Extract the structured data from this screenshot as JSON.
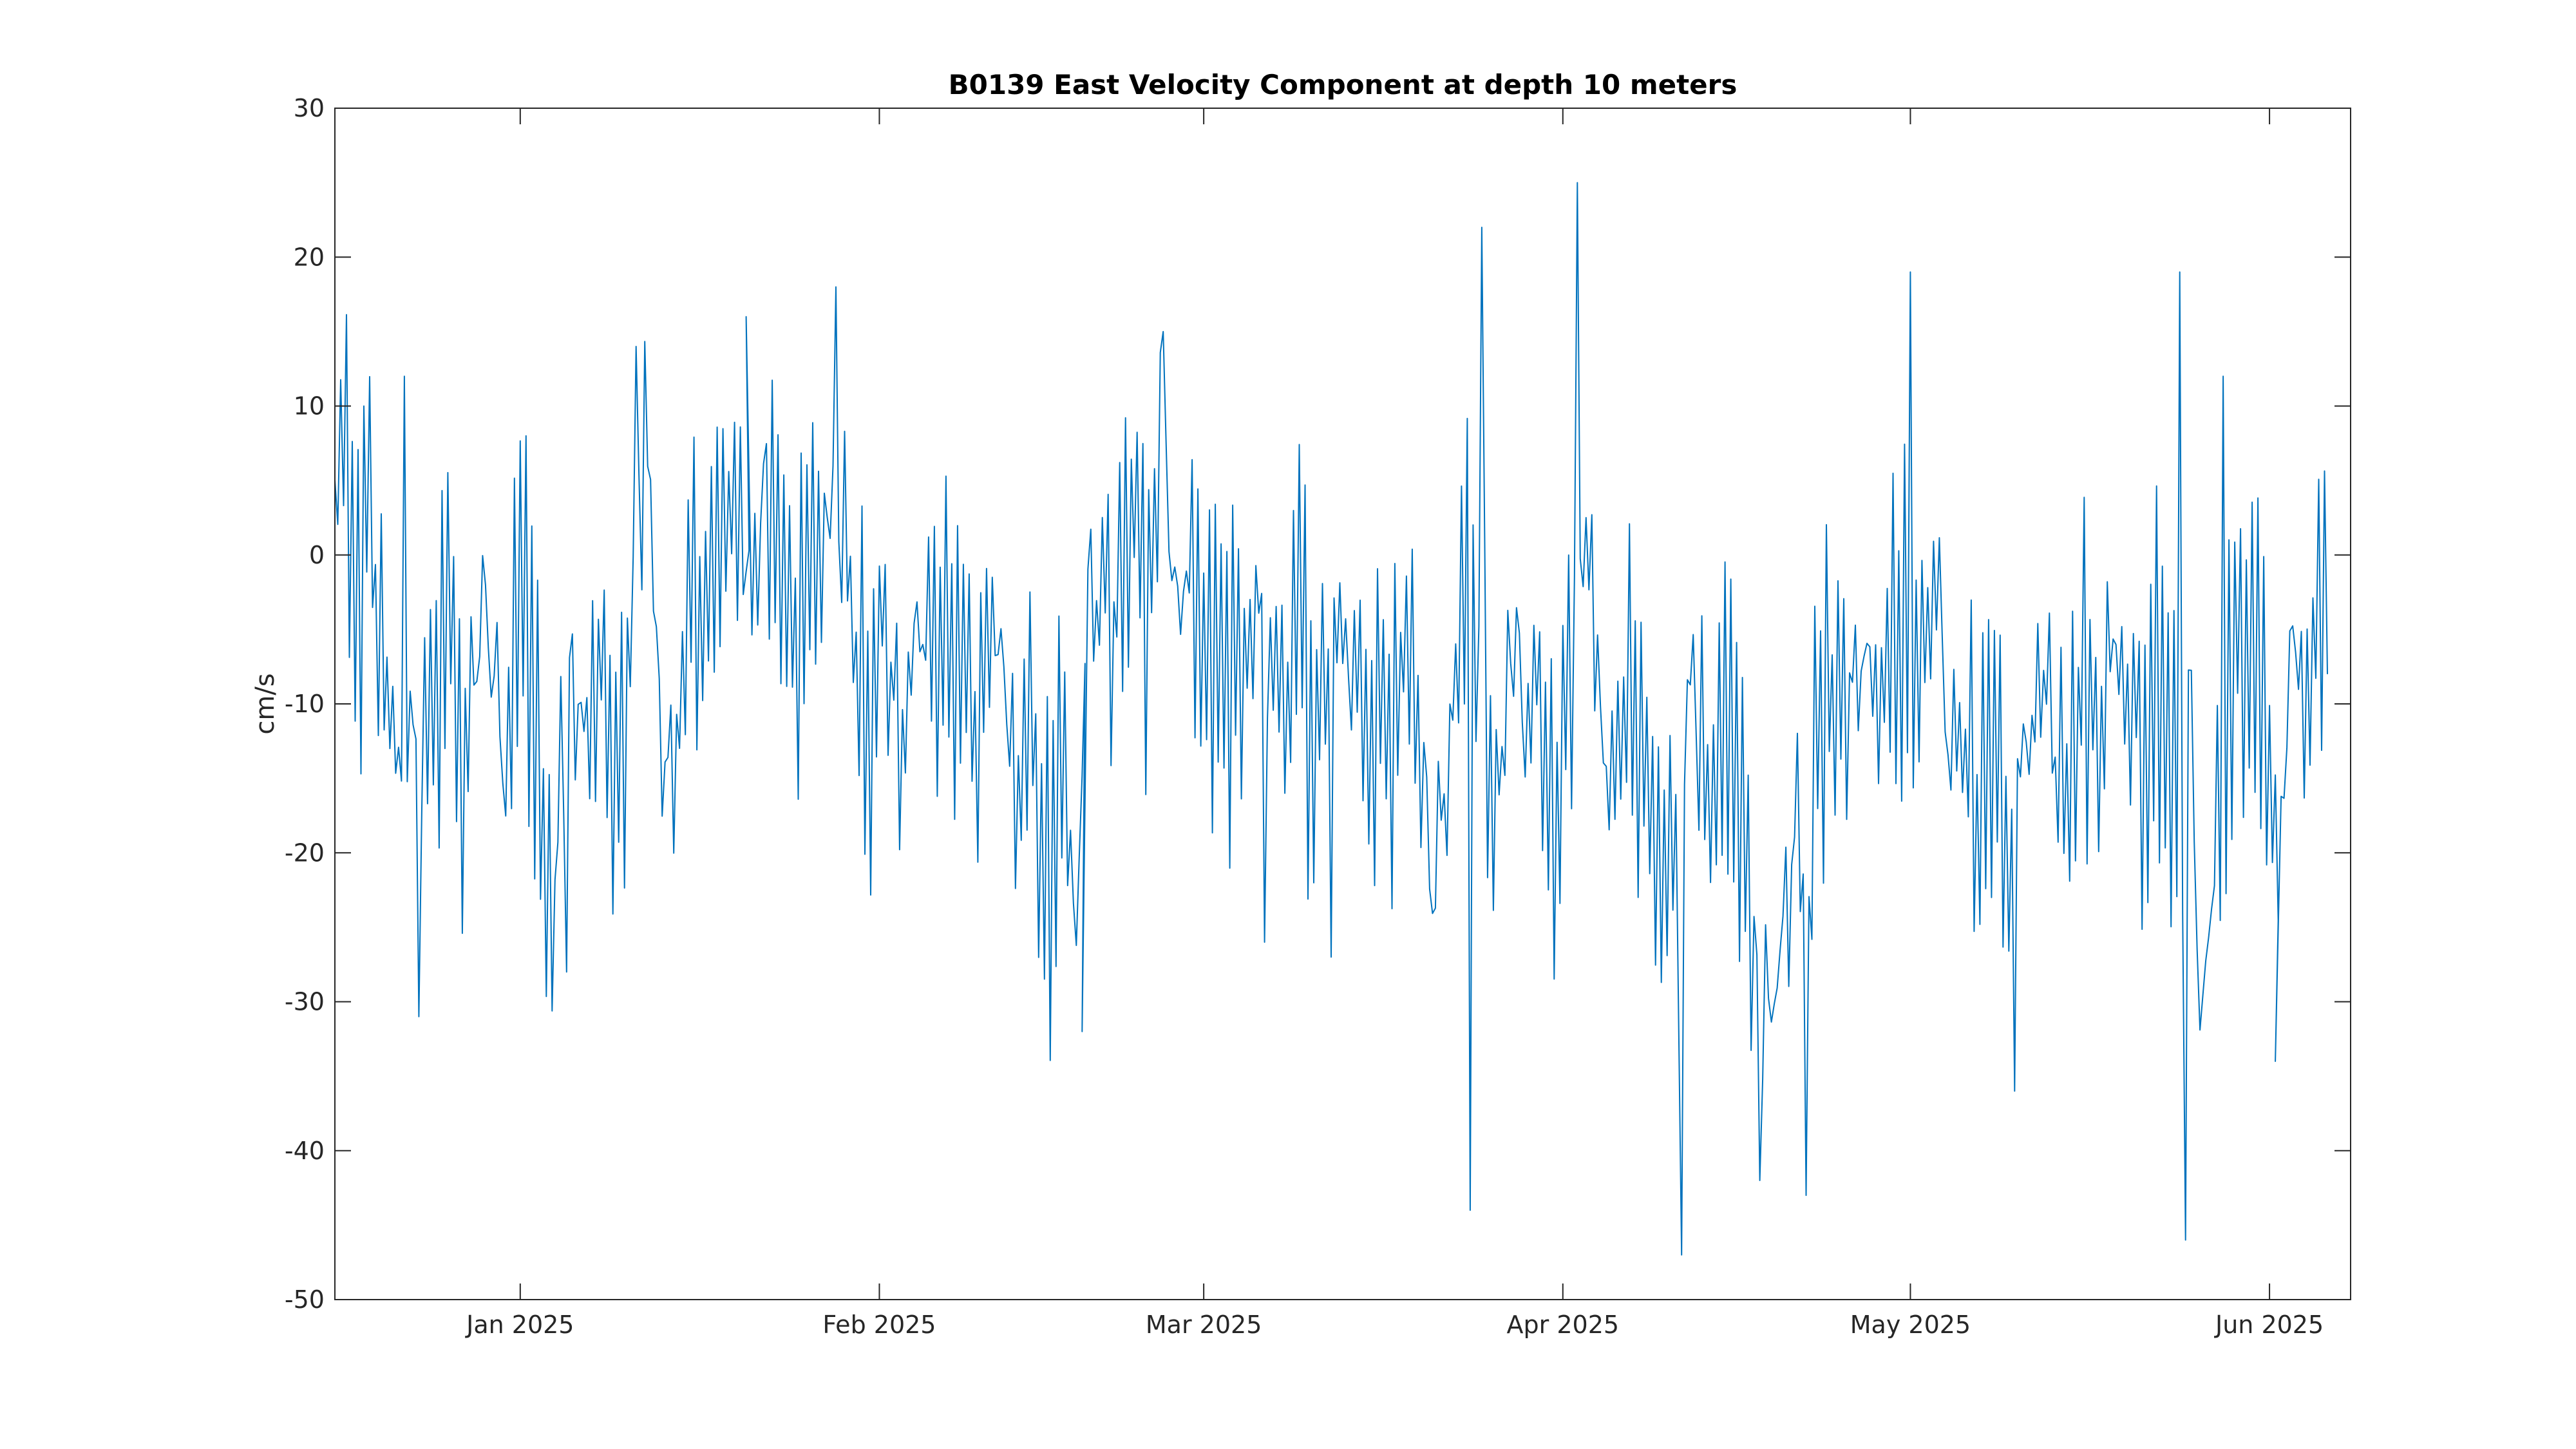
{
  "chart_data": {
    "type": "line",
    "title": "B0139 East Velocity Component at depth 10 meters",
    "xlabel": "",
    "ylabel": "cm/s",
    "xlim": [
      "2024-12-16",
      "2025-06-06"
    ],
    "ylim": [
      -50,
      30
    ],
    "xticks": [
      {
        "date": "2025-01-01",
        "label": "Jan 2025"
      },
      {
        "date": "2025-02-01",
        "label": "Feb 2025"
      },
      {
        "date": "2025-03-01",
        "label": "Mar 2025"
      },
      {
        "date": "2025-04-01",
        "label": "Apr 2025"
      },
      {
        "date": "2025-05-01",
        "label": "May 2025"
      },
      {
        "date": "2025-06-01",
        "label": "Jun 2025"
      }
    ],
    "yticks": [
      30,
      20,
      10,
      0,
      -10,
      -20,
      -30,
      -40,
      -50
    ],
    "grid": false,
    "series_color": "#0072BD",
    "series": [
      {
        "sampling_hours": 6,
        "x": [
          {
            "date": "2024-12-16",
            "y": 2
          },
          {
            "date": "2024-12-17",
            "y": 5
          },
          {
            "date": "2024-12-18",
            "y": -2
          },
          {
            "date": "2024-12-19",
            "y": 3
          },
          {
            "date": "2024-12-20",
            "y": -8
          },
          {
            "date": "2024-12-21",
            "y": -12
          },
          {
            "date": "2024-12-22",
            "y": -18
          },
          {
            "date": "2024-12-23",
            "y": -6
          },
          {
            "date": "2024-12-24",
            "y": -14
          },
          {
            "date": "2024-12-25",
            "y": -9
          },
          {
            "date": "2024-12-26",
            "y": -5
          },
          {
            "date": "2024-12-27",
            "y": -16
          },
          {
            "date": "2024-12-28",
            "y": -10
          },
          {
            "date": "2024-12-29",
            "y": -4
          },
          {
            "date": "2024-12-30",
            "y": -12
          },
          {
            "date": "2024-12-31",
            "y": -15
          },
          {
            "date": "2025-01-01",
            "y": 3
          },
          {
            "date": "2025-01-02",
            "y": -11
          },
          {
            "date": "2025-01-03",
            "y": -18
          },
          {
            "date": "2025-01-04",
            "y": -22
          },
          {
            "date": "2025-01-05",
            "y": -8
          },
          {
            "date": "2025-01-06",
            "y": -14
          },
          {
            "date": "2025-01-07",
            "y": -12
          },
          {
            "date": "2025-01-08",
            "y": -5
          },
          {
            "date": "2025-01-09",
            "y": -16
          },
          {
            "date": "2025-01-10",
            "y": -10
          },
          {
            "date": "2025-01-11",
            "y": -3
          },
          {
            "date": "2025-01-12",
            "y": 8
          },
          {
            "date": "2025-01-13",
            "y": -12
          },
          {
            "date": "2025-01-14",
            "y": -14
          },
          {
            "date": "2025-01-15",
            "y": -8
          },
          {
            "date": "2025-01-16",
            "y": -4
          },
          {
            "date": "2025-01-17",
            "y": -2
          },
          {
            "date": "2025-01-18",
            "y": 0
          },
          {
            "date": "2025-01-19",
            "y": 2
          },
          {
            "date": "2025-01-20",
            "y": 3
          },
          {
            "date": "2025-01-21",
            "y": -4
          },
          {
            "date": "2025-01-22",
            "y": 6
          },
          {
            "date": "2025-01-23",
            "y": -2
          },
          {
            "date": "2025-01-24",
            "y": -6
          },
          {
            "date": "2025-01-25",
            "y": -4
          },
          {
            "date": "2025-01-26",
            "y": -2
          },
          {
            "date": "2025-01-27",
            "y": 1
          },
          {
            "date": "2025-01-28",
            "y": 5
          },
          {
            "date": "2025-01-29",
            "y": 2
          },
          {
            "date": "2025-01-30",
            "y": -6
          },
          {
            "date": "2025-01-31",
            "y": -10
          },
          {
            "date": "2025-02-01",
            "y": -4
          },
          {
            "date": "2025-02-02",
            "y": -8
          },
          {
            "date": "2025-02-03",
            "y": -12
          },
          {
            "date": "2025-02-04",
            "y": -6
          },
          {
            "date": "2025-02-05",
            "y": -3
          },
          {
            "date": "2025-02-06",
            "y": -10
          },
          {
            "date": "2025-02-07",
            "y": -8
          },
          {
            "date": "2025-02-08",
            "y": -5
          },
          {
            "date": "2025-02-09",
            "y": -14
          },
          {
            "date": "2025-02-10",
            "y": -9
          },
          {
            "date": "2025-02-11",
            "y": -6
          },
          {
            "date": "2025-02-12",
            "y": -12
          },
          {
            "date": "2025-02-13",
            "y": -16
          },
          {
            "date": "2025-02-14",
            "y": -10
          },
          {
            "date": "2025-02-15",
            "y": -18
          },
          {
            "date": "2025-02-16",
            "y": -20
          },
          {
            "date": "2025-02-17",
            "y": -14
          },
          {
            "date": "2025-02-18",
            "y": -26
          },
          {
            "date": "2025-02-19",
            "y": -2
          },
          {
            "date": "2025-02-20",
            "y": -4
          },
          {
            "date": "2025-02-21",
            "y": -6
          },
          {
            "date": "2025-02-22",
            "y": -1
          },
          {
            "date": "2025-02-23",
            "y": 2
          },
          {
            "date": "2025-02-24",
            "y": -3
          },
          {
            "date": "2025-02-25",
            "y": 4
          },
          {
            "date": "2025-02-26",
            "y": 1
          },
          {
            "date": "2025-02-27",
            "y": -5
          },
          {
            "date": "2025-02-28",
            "y": -2
          },
          {
            "date": "2025-03-01",
            "y": -8
          },
          {
            "date": "2025-03-02",
            "y": -4
          },
          {
            "date": "2025-03-03",
            "y": -6
          },
          {
            "date": "2025-03-04",
            "y": -10
          },
          {
            "date": "2025-03-05",
            "y": -3
          },
          {
            "date": "2025-03-06",
            "y": -7
          },
          {
            "date": "2025-03-07",
            "y": -5
          },
          {
            "date": "2025-03-08",
            "y": -9
          },
          {
            "date": "2025-03-09",
            "y": -4
          },
          {
            "date": "2025-03-10",
            "y": -8
          },
          {
            "date": "2025-03-11",
            "y": -12
          },
          {
            "date": "2025-03-12",
            "y": -6
          },
          {
            "date": "2025-03-13",
            "y": -4
          },
          {
            "date": "2025-03-14",
            "y": -10
          },
          {
            "date": "2025-03-15",
            "y": -7
          },
          {
            "date": "2025-03-16",
            "y": -9
          },
          {
            "date": "2025-03-17",
            "y": -12
          },
          {
            "date": "2025-03-18",
            "y": -6
          },
          {
            "date": "2025-03-19",
            "y": -8
          },
          {
            "date": "2025-03-20",
            "y": -14
          },
          {
            "date": "2025-03-21",
            "y": -22
          },
          {
            "date": "2025-03-22",
            "y": -12
          },
          {
            "date": "2025-03-23",
            "y": -5
          },
          {
            "date": "2025-03-24",
            "y": -2
          },
          {
            "date": "2025-03-25",
            "y": -10
          },
          {
            "date": "2025-03-26",
            "y": -16
          },
          {
            "date": "2025-03-27",
            "y": -12
          },
          {
            "date": "2025-03-28",
            "y": -6
          },
          {
            "date": "2025-03-29",
            "y": -14
          },
          {
            "date": "2025-03-30",
            "y": -8
          },
          {
            "date": "2025-03-31",
            "y": -18
          },
          {
            "date": "2025-04-01",
            "y": -12
          },
          {
            "date": "2025-04-02",
            "y": -4
          },
          {
            "date": "2025-04-03",
            "y": -2
          },
          {
            "date": "2025-04-04",
            "y": -10
          },
          {
            "date": "2025-04-05",
            "y": -18
          },
          {
            "date": "2025-04-06",
            "y": -14
          },
          {
            "date": "2025-04-07",
            "y": -8
          },
          {
            "date": "2025-04-08",
            "y": -12
          },
          {
            "date": "2025-04-09",
            "y": -20
          },
          {
            "date": "2025-04-10",
            "y": -16
          },
          {
            "date": "2025-04-11",
            "y": -24
          },
          {
            "date": "2025-04-12",
            "y": -6
          },
          {
            "date": "2025-04-13",
            "y": -12
          },
          {
            "date": "2025-04-14",
            "y": -18
          },
          {
            "date": "2025-04-15",
            "y": -10
          },
          {
            "date": "2025-04-16",
            "y": -16
          },
          {
            "date": "2025-04-17",
            "y": -22
          },
          {
            "date": "2025-04-18",
            "y": -28
          },
          {
            "date": "2025-04-19",
            "y": -32
          },
          {
            "date": "2025-04-20",
            "y": -26
          },
          {
            "date": "2025-04-21",
            "y": -18
          },
          {
            "date": "2025-04-22",
            "y": -30
          },
          {
            "date": "2025-04-23",
            "y": -12
          },
          {
            "date": "2025-04-24",
            "y": -8
          },
          {
            "date": "2025-04-25",
            "y": -14
          },
          {
            "date": "2025-04-26",
            "y": -10
          },
          {
            "date": "2025-04-27",
            "y": -6
          },
          {
            "date": "2025-04-28",
            "y": -12
          },
          {
            "date": "2025-04-29",
            "y": -8
          },
          {
            "date": "2025-04-30",
            "y": -4
          },
          {
            "date": "2025-05-01",
            "y": -10
          },
          {
            "date": "2025-05-02",
            "y": -6
          },
          {
            "date": "2025-05-03",
            "y": -2
          },
          {
            "date": "2025-05-04",
            "y": -8
          },
          {
            "date": "2025-05-05",
            "y": -14
          },
          {
            "date": "2025-05-06",
            "y": -12
          },
          {
            "date": "2025-05-07",
            "y": -18
          },
          {
            "date": "2025-05-08",
            "y": -10
          },
          {
            "date": "2025-05-09",
            "y": -16
          },
          {
            "date": "2025-05-10",
            "y": -20
          },
          {
            "date": "2025-05-11",
            "y": -14
          },
          {
            "date": "2025-05-12",
            "y": -8
          },
          {
            "date": "2025-05-13",
            "y": -12
          },
          {
            "date": "2025-05-14",
            "y": -18
          },
          {
            "date": "2025-05-15",
            "y": -10
          },
          {
            "date": "2025-05-16",
            "y": -6
          },
          {
            "date": "2025-05-17",
            "y": -12
          },
          {
            "date": "2025-05-18",
            "y": -8
          },
          {
            "date": "2025-05-19",
            "y": -4
          },
          {
            "date": "2025-05-20",
            "y": -10
          },
          {
            "date": "2025-05-21",
            "y": -14
          },
          {
            "date": "2025-05-22",
            "y": -8
          },
          {
            "date": "2025-05-23",
            "y": -12
          },
          {
            "date": "2025-05-24",
            "y": -20
          },
          {
            "date": "2025-05-25",
            "y": -6
          },
          {
            "date": "2025-05-26",
            "y": -30
          },
          {
            "date": "2025-05-27",
            "y": -24
          },
          {
            "date": "2025-05-28",
            "y": -14
          },
          {
            "date": "2025-05-29",
            "y": -4
          },
          {
            "date": "2025-05-30",
            "y": -8
          },
          {
            "date": "2025-05-31",
            "y": -2
          },
          {
            "date": "2025-06-01",
            "y": -16
          },
          {
            "date": "2025-06-02",
            "y": -20
          },
          {
            "date": "2025-06-03",
            "y": -6
          },
          {
            "date": "2025-06-04",
            "y": -10
          },
          {
            "date": "2025-06-05",
            "y": -4
          },
          {
            "date": "2025-06-06",
            "y": -8
          }
        ],
        "peaks": [
          {
            "date": "2024-12-18",
            "y": 10
          },
          {
            "date": "2024-12-22",
            "y": 12
          },
          {
            "date": "2024-12-23",
            "y": -31
          },
          {
            "date": "2025-01-01",
            "y": 8
          },
          {
            "date": "2025-01-05",
            "y": -28
          },
          {
            "date": "2025-01-11",
            "y": 14
          },
          {
            "date": "2025-01-20",
            "y": 16
          },
          {
            "date": "2025-01-28",
            "y": 18
          },
          {
            "date": "2025-02-18",
            "y": -32
          },
          {
            "date": "2025-02-25",
            "y": 15
          },
          {
            "date": "2025-03-06",
            "y": -26
          },
          {
            "date": "2025-03-12",
            "y": -27
          },
          {
            "date": "2025-03-24",
            "y": -44
          },
          {
            "date": "2025-03-25",
            "y": 22
          },
          {
            "date": "2025-04-02",
            "y": 25
          },
          {
            "date": "2025-04-11",
            "y": -47
          },
          {
            "date": "2025-04-18",
            "y": -42
          },
          {
            "date": "2025-04-22",
            "y": -43
          },
          {
            "date": "2025-05-01",
            "y": 19
          },
          {
            "date": "2025-05-10",
            "y": -36
          },
          {
            "date": "2025-05-24",
            "y": 19
          },
          {
            "date": "2025-05-24",
            "y": -46
          },
          {
            "date": "2025-05-28",
            "y": 12
          },
          {
            "date": "2025-06-01",
            "y": -34
          }
        ]
      }
    ]
  }
}
